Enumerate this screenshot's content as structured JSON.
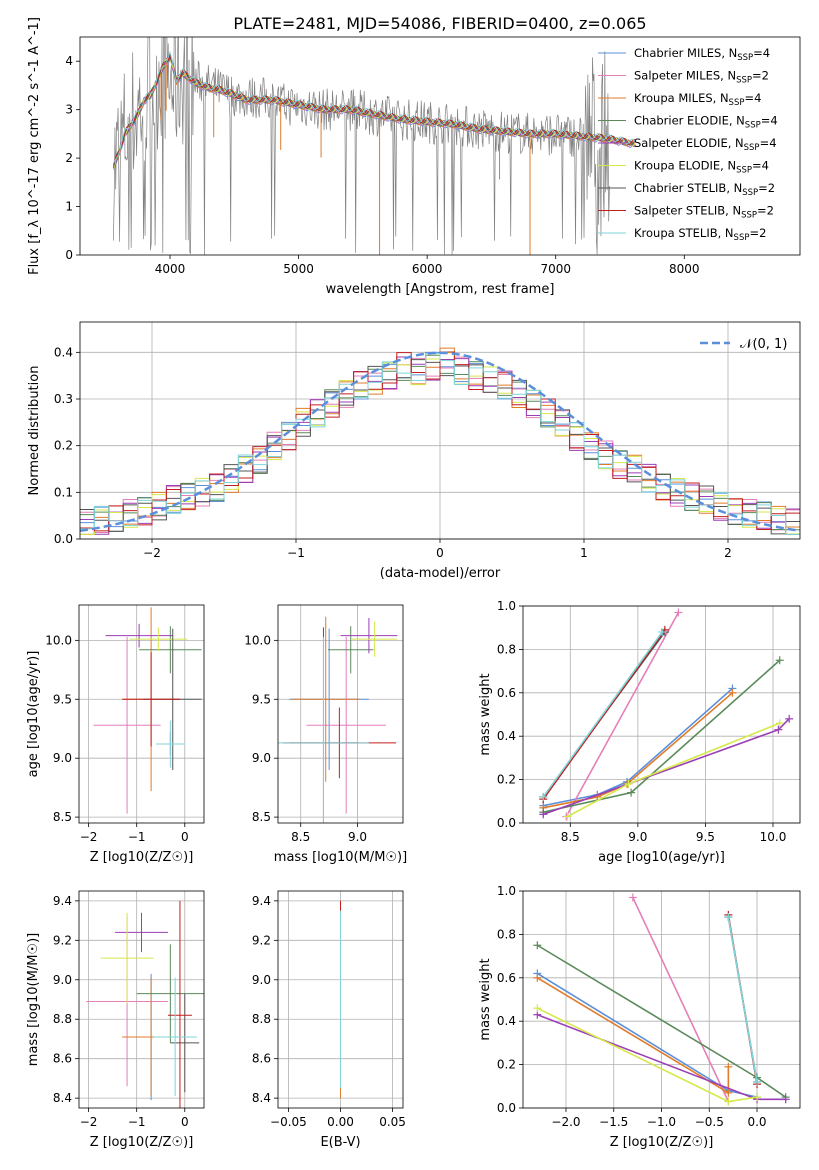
{
  "figure_title": "PLATE=2481, MJD=54086, FIBERID=0400, z=0.065",
  "series_names": [
    "Chabrier MILES, N_SSP=4",
    "Salpeter MILES, N_SSP=2",
    "Kroupa MILES, N_SSP=4",
    "Chabrier ELODIE, N_SSP=4",
    "Salpeter ELODIE, N_SSP=4",
    "Kroupa ELODIE, N_SSP=4",
    "Chabrier STELIB, N_SSP=2",
    "Salpeter STELIB, N_SSP=2",
    "Kroupa STELIB, N_SSP=2"
  ],
  "legend_entries": [
    {
      "base": "Chabrier MILES, N",
      "sub": "SSP",
      "tail": "=4"
    },
    {
      "base": "Salpeter MILES, N",
      "sub": "SSP",
      "tail": "=2"
    },
    {
      "base": "Kroupa MILES, N",
      "sub": "SSP",
      "tail": "=4"
    },
    {
      "base": "Chabrier ELODIE, N",
      "sub": "SSP",
      "tail": "=4"
    },
    {
      "base": "Salpeter ELODIE, N",
      "sub": "SSP",
      "tail": "=4"
    },
    {
      "base": "Kroupa ELODIE, N",
      "sub": "SSP",
      "tail": "=4"
    },
    {
      "base": "Chabrier STELIB, N",
      "sub": "SSP",
      "tail": "=2"
    },
    {
      "base": "Salpeter STELIB, N",
      "sub": "SSP",
      "tail": "=2"
    },
    {
      "base": "Kroupa STELIB, N",
      "sub": "SSP",
      "tail": "=2"
    }
  ],
  "colors": {
    "series": [
      "#5b8fdb",
      "#e57fb8",
      "#e07b2a",
      "#5a8a5a",
      "#9b3fb5",
      "#d6e84a",
      "#555555",
      "#c21f1f",
      "#7fd4d9"
    ],
    "data": "#808080",
    "normal": "#5b8fdb",
    "grid": "#b0b0b0"
  },
  "chart_data": [
    {
      "id": "spectrum",
      "type": "line",
      "xlabel": "wavelength [Angstrom, rest frame]",
      "ylabel": "Flux [f_λ 10^-17 erg cm^-2 s^-1 A^-1]",
      "xlim": [
        3300,
        8900
      ],
      "ylim": [
        0,
        4.5
      ],
      "xticks": [
        4000,
        5000,
        6000,
        7000,
        8000
      ],
      "yticks": [
        0,
        1,
        2,
        3,
        4
      ],
      "data_x": [
        3560,
        3580,
        3620,
        3660,
        3700,
        3740,
        3800,
        3850,
        3900,
        3950,
        4000,
        4050,
        4100,
        4200,
        4300,
        4400,
        4500,
        4600,
        4700,
        4800,
        4900,
        5000,
        5200,
        5400,
        5600,
        5800,
        6000,
        6200,
        6400,
        6600,
        6800,
        7000,
        7200,
        7400,
        7500
      ],
      "data_y": [
        1.9,
        1.9,
        2.2,
        2.6,
        2.8,
        2.9,
        3.3,
        3.4,
        3.7,
        4.0,
        3.5,
        3.6,
        3.8,
        3.6,
        3.5,
        3.4,
        3.3,
        3.25,
        3.25,
        3.2,
        3.1,
        3.1,
        3.0,
        3.0,
        2.9,
        2.8,
        2.75,
        2.7,
        2.6,
        2.55,
        2.5,
        2.5,
        2.45,
        2.4,
        2.3
      ],
      "model_x": [
        3560,
        3600,
        3650,
        3700,
        3750,
        3800,
        3850,
        3900,
        3950,
        4000,
        4050,
        4100,
        4200,
        4300,
        4400,
        4500,
        4600,
        4800,
        5000,
        5200,
        5400,
        5600,
        5800,
        6000,
        6200,
        6400,
        6600,
        6800,
        7000,
        7200,
        7400,
        7500,
        7600
      ],
      "model_y": [
        1.8,
        2.1,
        2.5,
        2.7,
        2.9,
        3.2,
        3.3,
        3.6,
        3.9,
        4.1,
        3.6,
        3.75,
        3.55,
        3.45,
        3.4,
        3.3,
        3.2,
        3.2,
        3.1,
        3.0,
        3.0,
        2.9,
        2.8,
        2.75,
        2.7,
        2.6,
        2.55,
        2.5,
        2.5,
        2.45,
        2.4,
        2.35,
        2.3
      ],
      "absorption_x": [
        3930,
        3970,
        4340,
        4861,
        5175,
        5630,
        6563,
        6800
      ]
    },
    {
      "id": "residuals",
      "type": "step",
      "xlabel": "(data-model)/error",
      "ylabel": "Normed distribution",
      "xlim": [
        -2.5,
        2.5
      ],
      "ylim": [
        0,
        0.465
      ],
      "xticks": [
        -2,
        -1,
        0,
        1,
        2
      ],
      "yticks": [
        0.0,
        0.1,
        0.2,
        0.3,
        0.4
      ],
      "normal_label": "𝒩(0, 1)",
      "bins": [
        -2.5,
        -2.4,
        -2.3,
        -2.2,
        -2.1,
        -2.0,
        -1.9,
        -1.8,
        -1.7,
        -1.6,
        -1.5,
        -1.4,
        -1.3,
        -1.2,
        -1.1,
        -1.0,
        -0.9,
        -0.8,
        -0.7,
        -0.6,
        -0.5,
        -0.4,
        -0.3,
        -0.2,
        -0.1,
        0.0,
        0.1,
        0.2,
        0.3,
        0.4,
        0.5,
        0.6,
        0.7,
        0.8,
        0.9,
        1.0,
        1.1,
        1.2,
        1.3,
        1.4,
        1.5,
        1.6,
        1.7,
        1.8,
        1.9,
        2.0,
        2.1,
        2.2,
        2.3,
        2.4,
        2.5
      ],
      "hist": [
        0.035,
        0.04,
        0.045,
        0.055,
        0.06,
        0.07,
        0.085,
        0.09,
        0.1,
        0.11,
        0.13,
        0.15,
        0.17,
        0.2,
        0.22,
        0.25,
        0.27,
        0.29,
        0.31,
        0.33,
        0.34,
        0.35,
        0.37,
        0.36,
        0.37,
        0.38,
        0.36,
        0.35,
        0.34,
        0.33,
        0.31,
        0.29,
        0.27,
        0.25,
        0.22,
        0.2,
        0.18,
        0.16,
        0.15,
        0.13,
        0.11,
        0.1,
        0.09,
        0.085,
        0.07,
        0.06,
        0.055,
        0.05,
        0.04,
        0.035
      ]
    },
    {
      "id": "age-vs-Z",
      "type": "errorbar",
      "xlabel": "Z [log10(Z/Z☉)]",
      "ylabel": "age [log10(age/yr)]",
      "xlim": [
        -2.2,
        0.4
      ],
      "ylim": [
        8.45,
        10.3
      ],
      "xticks": [
        -2,
        -1,
        0
      ],
      "yticks": [
        8.5,
        9.0,
        9.5,
        10.0
      ],
      "points": [
        {
          "s": 0,
          "x": -0.3,
          "y": 9.12,
          "xerr": 0.25,
          "yerr": 0.1
        },
        {
          "s": 1,
          "x": -1.2,
          "y": 9.28,
          "xerr": 0.7,
          "yerr": 0.75
        },
        {
          "s": 2,
          "x": -0.7,
          "y": 9.5,
          "xerr": 0.6,
          "yerr": 0.78
        },
        {
          "s": 3,
          "x": -0.3,
          "y": 9.92,
          "xerr": 0.65,
          "yerr": 0.2
        },
        {
          "s": 4,
          "x": -0.95,
          "y": 10.04,
          "xerr": 0.7,
          "yerr": 0.1
        },
        {
          "s": 5,
          "x": -0.55,
          "y": 10.01,
          "xerr": 0.6,
          "yerr": 0.1
        },
        {
          "s": 6,
          "x": -0.25,
          "y": 9.5,
          "xerr": 0.6,
          "yerr": 0.6
        },
        {
          "s": 7,
          "x": -0.7,
          "y": 9.5,
          "xerr": 0.6,
          "yerr": 0.4
        },
        {
          "s": 8,
          "x": -0.3,
          "y": 9.12,
          "xerr": 0.3,
          "yerr": 0.2
        }
      ]
    },
    {
      "id": "age-vs-mass",
      "type": "errorbar",
      "xlabel": "mass [log10(M/M☉)]",
      "ylabel": "",
      "xlim": [
        8.3,
        9.4
      ],
      "ylim": [
        8.45,
        10.3
      ],
      "xticks": [
        8.5,
        9.0
      ],
      "yticks": [
        8.5,
        9.0,
        9.5,
        10.0
      ],
      "points": [
        {
          "s": 0,
          "x": 8.75,
          "y": 9.5,
          "xerr": 0.35,
          "yerr": 0.6
        },
        {
          "s": 1,
          "x": 8.9,
          "y": 9.28,
          "xerr": 0.35,
          "yerr": 0.75
        },
        {
          "s": 2,
          "x": 8.72,
          "y": 9.5,
          "xerr": 0.3,
          "yerr": 0.7
        },
        {
          "s": 3,
          "x": 8.94,
          "y": 9.92,
          "xerr": 0.2,
          "yerr": 0.2
        },
        {
          "s": 4,
          "x": 9.1,
          "y": 10.04,
          "xerr": 0.25,
          "yerr": 0.15
        },
        {
          "s": 5,
          "x": 9.15,
          "y": 10.01,
          "xerr": 0.2,
          "yerr": 0.15
        },
        {
          "s": 6,
          "x": 8.7,
          "y": 9.13,
          "xerr": 0.3,
          "yerr": 0.98
        },
        {
          "s": 7,
          "x": 8.84,
          "y": 9.13,
          "xerr": 0.5,
          "yerr": 0.3
        },
        {
          "s": 8,
          "x": 8.7,
          "y": 9.13,
          "xerr": 0.4,
          "yerr": 0.9
        }
      ]
    },
    {
      "id": "weight-vs-age",
      "type": "line",
      "xlabel": "age [log10(age/yr)]",
      "ylabel": "mass weight",
      "xlim": [
        8.15,
        10.2
      ],
      "ylim": [
        0.0,
        1.0
      ],
      "xticks": [
        8.5,
        9.0,
        9.5,
        10.0
      ],
      "yticks": [
        0.0,
        0.2,
        0.4,
        0.6,
        0.8,
        1.0
      ],
      "series": [
        {
          "s": 0,
          "x": [
            8.3,
            8.7,
            8.92,
            9.7
          ],
          "y": [
            0.08,
            0.13,
            0.19,
            0.62
          ]
        },
        {
          "s": 1,
          "x": [
            8.47,
            9.3
          ],
          "y": [
            0.03,
            0.97
          ]
        },
        {
          "s": 2,
          "x": [
            8.3,
            8.7,
            8.92,
            9.7
          ],
          "y": [
            0.07,
            0.12,
            0.18,
            0.6
          ]
        },
        {
          "s": 3,
          "x": [
            8.3,
            8.95,
            10.05
          ],
          "y": [
            0.05,
            0.14,
            0.75
          ]
        },
        {
          "s": 4,
          "x": [
            8.3,
            8.93,
            10.04,
            10.12
          ],
          "y": [
            0.04,
            0.18,
            0.43,
            0.48
          ]
        },
        {
          "s": 5,
          "x": [
            8.48,
            8.93,
            10.05
          ],
          "y": [
            0.03,
            0.18,
            0.46
          ]
        },
        {
          "s": 6,
          "x": [
            8.3,
            9.2
          ],
          "y": [
            0.12,
            0.88
          ]
        },
        {
          "s": 7,
          "x": [
            8.3,
            9.2
          ],
          "y": [
            0.11,
            0.89
          ]
        },
        {
          "s": 8,
          "x": [
            8.3,
            9.18
          ],
          "y": [
            0.12,
            0.88
          ]
        }
      ]
    },
    {
      "id": "mass-vs-Z",
      "type": "errorbar",
      "xlabel": "Z [log10(Z/Z☉)]",
      "ylabel": "mass [log10(M/M☉)]",
      "xlim": [
        -2.2,
        0.4
      ],
      "ylim": [
        8.35,
        9.45
      ],
      "xticks": [
        -2,
        -1,
        0
      ],
      "yticks": [
        8.4,
        8.6,
        8.8,
        9.0,
        9.2,
        9.4
      ],
      "points": [
        {
          "s": 0,
          "x": -0.7,
          "y": 8.71,
          "xerr": 0.6,
          "yerr": 0.32
        },
        {
          "s": 1,
          "x": -1.2,
          "y": 8.89,
          "xerr": 0.85,
          "yerr": 0.43
        },
        {
          "s": 2,
          "x": -0.7,
          "y": 8.71,
          "xerr": 0.6,
          "yerr": 0.3
        },
        {
          "s": 3,
          "x": -0.3,
          "y": 8.93,
          "xerr": 0.7,
          "yerr": 0.25
        },
        {
          "s": 4,
          "x": -0.9,
          "y": 9.24,
          "xerr": 0.55,
          "yerr": 0.1
        },
        {
          "s": 5,
          "x": -1.2,
          "y": 9.11,
          "xerr": 0.55,
          "yerr": 0.23
        },
        {
          "s": 6,
          "x": 0.0,
          "y": 8.68,
          "xerr": 0.3,
          "yerr": 0.25
        },
        {
          "s": 7,
          "x": -0.1,
          "y": 8.82,
          "xerr": 0.25,
          "yerr": 0.58
        },
        {
          "s": 8,
          "x": -0.2,
          "y": 8.71,
          "xerr": 0.45,
          "yerr": 0.3
        }
      ]
    },
    {
      "id": "mass-vs-EBV",
      "type": "errorbar",
      "xlabel": "E(B-V)",
      "ylabel": "",
      "xlim": [
        -0.06,
        0.06
      ],
      "ylim": [
        8.35,
        9.45
      ],
      "xticks": [
        -0.05,
        0.0,
        0.05
      ],
      "yticks": [
        8.4,
        8.6,
        8.8,
        9.0,
        9.2,
        9.4
      ],
      "points": [
        {
          "s": 2,
          "x": 0.0,
          "y": 8.9,
          "xerr": 0,
          "yerr": 0.5
        },
        {
          "s": 7,
          "x": 0.0,
          "y": 9.0,
          "xerr": 0,
          "yerr": 0.4
        },
        {
          "s": 6,
          "x": 0.0,
          "y": 8.9,
          "xerr": 0,
          "yerr": 0.35
        },
        {
          "s": 8,
          "x": 0.0,
          "y": 8.9,
          "xerr": 0,
          "yerr": 0.45
        }
      ]
    },
    {
      "id": "weight-vs-Z",
      "type": "line",
      "xlabel": "Z [log10(Z/Z☉)]",
      "ylabel": "mass weight",
      "xlim": [
        -2.45,
        0.45
      ],
      "ylim": [
        0.0,
        1.0
      ],
      "xticks": [
        -2.0,
        -1.5,
        -1.0,
        -0.5,
        0.0
      ],
      "yticks": [
        0.0,
        0.2,
        0.4,
        0.6,
        0.8,
        1.0
      ],
      "series": [
        {
          "s": 0,
          "x": [
            -2.3,
            -0.3,
            0.0
          ],
          "y": [
            0.62,
            0.08,
            0.05
          ]
        },
        {
          "s": 1,
          "x": [
            -1.3,
            -0.3
          ],
          "y": [
            0.97,
            0.03
          ]
        },
        {
          "s": 2,
          "x": [
            -2.3,
            -0.3,
            -0.3
          ],
          "y": [
            0.6,
            0.07,
            0.19
          ]
        },
        {
          "s": 3,
          "x": [
            -2.3,
            0.0,
            0.3
          ],
          "y": [
            0.75,
            0.14,
            0.05
          ]
        },
        {
          "s": 4,
          "x": [
            -2.3,
            0.0,
            0.3
          ],
          "y": [
            0.43,
            0.04,
            0.04
          ]
        },
        {
          "s": 5,
          "x": [
            -2.3,
            -0.3,
            0.0
          ],
          "y": [
            0.46,
            0.03,
            0.05
          ]
        },
        {
          "s": 6,
          "x": [
            -0.3,
            0.0
          ],
          "y": [
            0.88,
            0.12
          ]
        },
        {
          "s": 7,
          "x": [
            -0.3,
            0.0
          ],
          "y": [
            0.89,
            0.11
          ]
        },
        {
          "s": 8,
          "x": [
            -0.3,
            0.0
          ],
          "y": [
            0.88,
            0.12
          ]
        }
      ]
    }
  ]
}
